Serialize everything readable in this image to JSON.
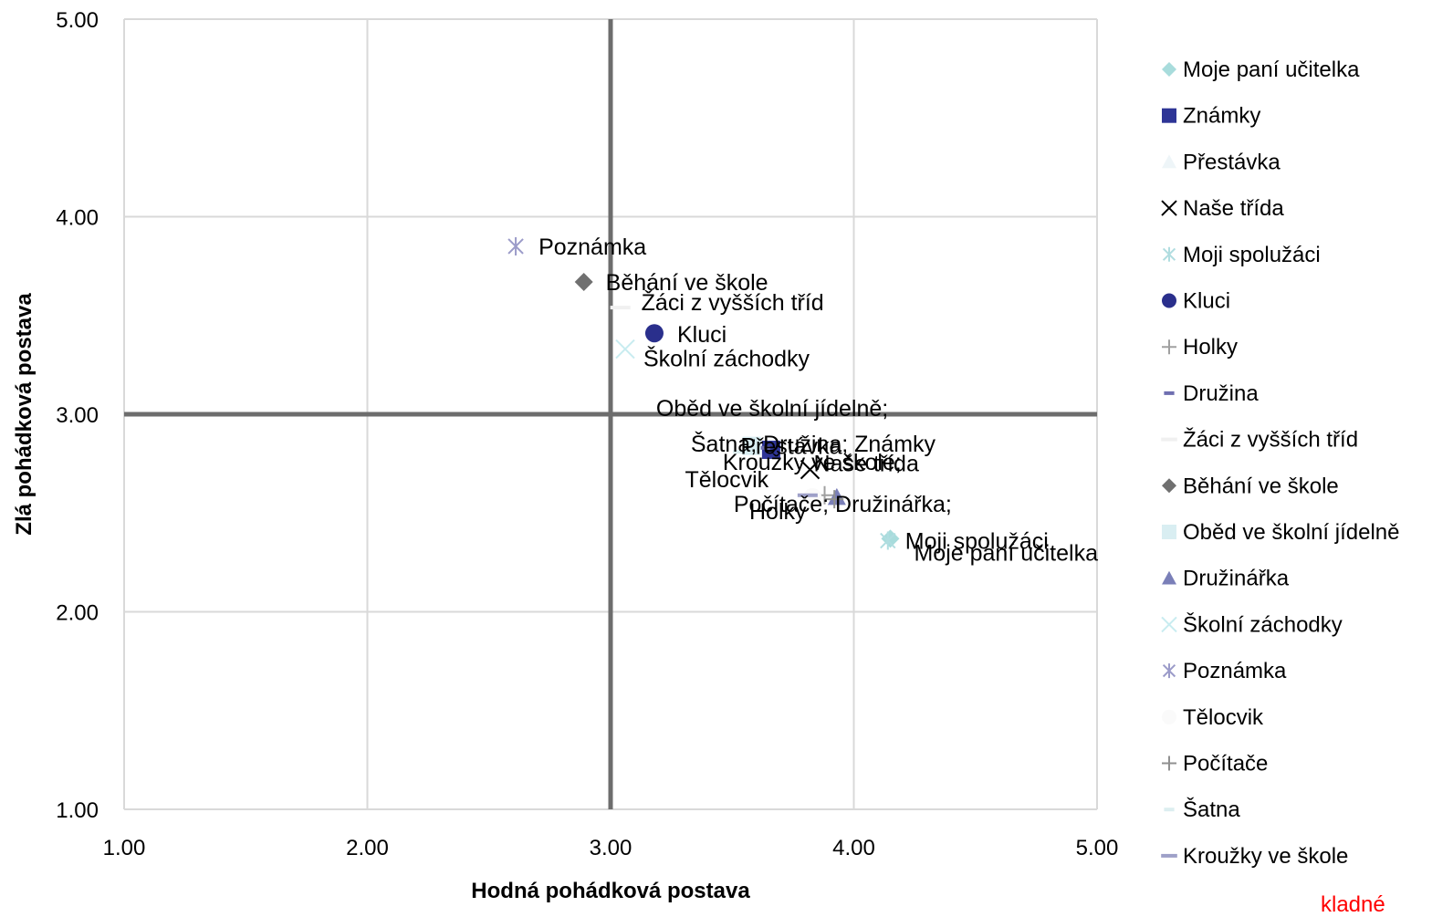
{
  "chart_data": {
    "type": "scatter",
    "title": "",
    "xlabel": "Hodná pohádková postava",
    "ylabel": "Zlá pohádková postava",
    "xlim": [
      1,
      5
    ],
    "ylim": [
      1,
      5
    ],
    "x_ticks": [
      "1.00",
      "2.00",
      "3.00",
      "4.00",
      "5.00"
    ],
    "y_ticks": [
      "1.00",
      "2.00",
      "3.00",
      "4.00",
      "5.00"
    ],
    "grid": true,
    "cross_lines": {
      "x": 3,
      "y": 3
    },
    "legend_position": "right",
    "series": [
      {
        "name": "Moje paní učitelka",
        "x": 4.15,
        "y": 2.37,
        "marker": "diamond",
        "color": "#a8dcdc"
      },
      {
        "name": "Známky",
        "x": 3.66,
        "y": 2.82,
        "marker": "square",
        "color": "#2e3596"
      },
      {
        "name": "Přestávka",
        "x": 3.57,
        "y": 2.84,
        "marker": "triangle",
        "color": "#eef5f8"
      },
      {
        "name": "Naše třída",
        "x": 3.82,
        "y": 2.72,
        "marker": "x",
        "color": "#000000"
      },
      {
        "name": "Moji spolužáci",
        "x": 4.14,
        "y": 2.36,
        "marker": "star",
        "color": "#b0dde0"
      },
      {
        "name": "Kluci",
        "x": 3.18,
        "y": 3.41,
        "marker": "circle",
        "color": "#2a2f8c"
      },
      {
        "name": "Holky",
        "x": 3.88,
        "y": 2.59,
        "marker": "plus",
        "color": "#a0a0a0"
      },
      {
        "name": "Družina",
        "x": 3.63,
        "y": 2.83,
        "marker": "dash",
        "color": "#6f6fb0"
      },
      {
        "name": "Žáci z vyšších tříd",
        "x": 3.04,
        "y": 3.54,
        "marker": "longdash",
        "color": "#f0f0f0"
      },
      {
        "name": "Běhání ve škole",
        "x": 2.89,
        "y": 3.67,
        "marker": "diamond",
        "color": "#707070"
      },
      {
        "name": "Oběd ve školní jídelně",
        "x": 3.58,
        "y": 2.84,
        "marker": "square",
        "color": "#d9eef2"
      },
      {
        "name": "Družinářka",
        "x": 3.93,
        "y": 2.58,
        "marker": "triangle",
        "color": "#7a7fb8"
      },
      {
        "name": "Školní záchodky",
        "x": 3.06,
        "y": 3.33,
        "marker": "x",
        "color": "#c8ecf0"
      },
      {
        "name": "Poznámka",
        "x": 2.61,
        "y": 3.85,
        "marker": "star",
        "color": "#9b9bc9"
      },
      {
        "name": "Tělocvik",
        "x": 3.83,
        "y": 2.58,
        "marker": "circle",
        "color": "#fafafa"
      },
      {
        "name": "Počítače",
        "x": 3.92,
        "y": 2.57,
        "marker": "plus",
        "color": "#909090"
      },
      {
        "name": "Šatna",
        "x": 3.53,
        "y": 2.81,
        "marker": "dash",
        "color": "#dceef0"
      },
      {
        "name": "Kroužky ve škole",
        "x": 3.81,
        "y": 2.59,
        "marker": "longdash",
        "color": "#9ea0c8"
      }
    ],
    "annotations": [
      {
        "text": "Poznámka",
        "x": 2.61,
        "y": 3.85
      },
      {
        "text": "Běhání ve škole",
        "x": 2.89,
        "y": 3.67
      },
      {
        "text": "Žáci z vyšších tříd",
        "x": 3.04,
        "y": 3.54
      },
      {
        "text": "Kluci",
        "x": 3.18,
        "y": 3.41
      },
      {
        "text": "Školní záchodky",
        "x": 3.06,
        "y": 3.33
      },
      {
        "text": "Přestávka",
        "x": 3.57,
        "y": 2.84
      },
      {
        "text": "Oběd ve školní jídelně;",
        "x": 3.63,
        "y": 2.83
      },
      {
        "text": "Šatna; Družina; Známky",
        "x": 3.66,
        "y": 2.82
      },
      {
        "text": "Naše třída",
        "x": 3.82,
        "y": 2.72
      },
      {
        "text": "Kroužky ve škole;",
        "x": 3.93,
        "y": 2.58
      },
      {
        "text": "Tělocvik",
        "x": 3.83,
        "y": 2.58
      },
      {
        "text": "Počítače; Družinářka;",
        "x": 3.93,
        "y": 2.58
      },
      {
        "text": "Moji spolužáci",
        "x": 4.14,
        "y": 2.36
      },
      {
        "text": "Holky",
        "x": 3.88,
        "y": 2.59
      },
      {
        "text": "Moje paní učitelka",
        "x": 4.15,
        "y": 2.37
      }
    ],
    "corner_note": "kladné"
  }
}
